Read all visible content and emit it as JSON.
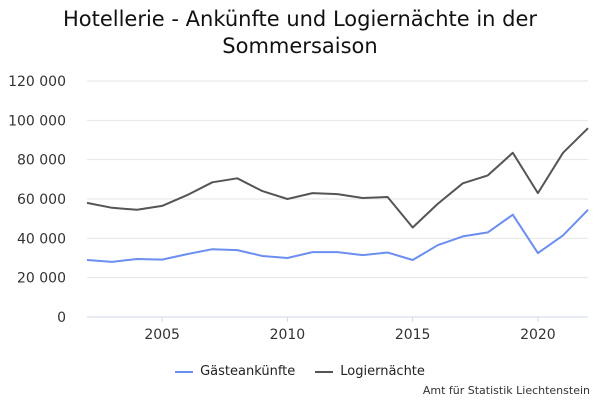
{
  "chart_data": {
    "type": "line",
    "title": "Hotellerie - Ankünfte und Logiernächte in der Sommersaison",
    "x": [
      2002,
      2003,
      2004,
      2005,
      2006,
      2007,
      2008,
      2009,
      2010,
      2011,
      2012,
      2013,
      2014,
      2015,
      2016,
      2017,
      2018,
      2019,
      2020,
      2021,
      2022
    ],
    "series": [
      {
        "name": "Gästeankünfte",
        "color": "#6b8ef0",
        "values": [
          29000,
          28000,
          29500,
          29200,
          32000,
          34500,
          34000,
          31000,
          30000,
          33000,
          33000,
          31500,
          32800,
          29000,
          36500,
          41000,
          43000,
          52000,
          32500,
          41500,
          54500
        ]
      },
      {
        "name": "Logiernächte",
        "color": "#555555",
        "values": [
          58000,
          55500,
          54500,
          56500,
          62000,
          68500,
          70500,
          64000,
          60000,
          63000,
          62500,
          60500,
          61000,
          45500,
          57500,
          68000,
          72000,
          83500,
          63000,
          83500,
          96000
        ]
      }
    ],
    "yticks": [
      "0",
      "20 000",
      "40 000",
      "60 000",
      "80 000",
      "100 000",
      "120 000"
    ],
    "xticks": [
      "2005",
      "2010",
      "2015",
      "2020"
    ],
    "ylim": [
      0,
      120000
    ],
    "xlim": [
      2002,
      2022
    ],
    "grid": true,
    "legend_position": "bottom"
  },
  "source": "Amt für Statistik Liechtenstein"
}
